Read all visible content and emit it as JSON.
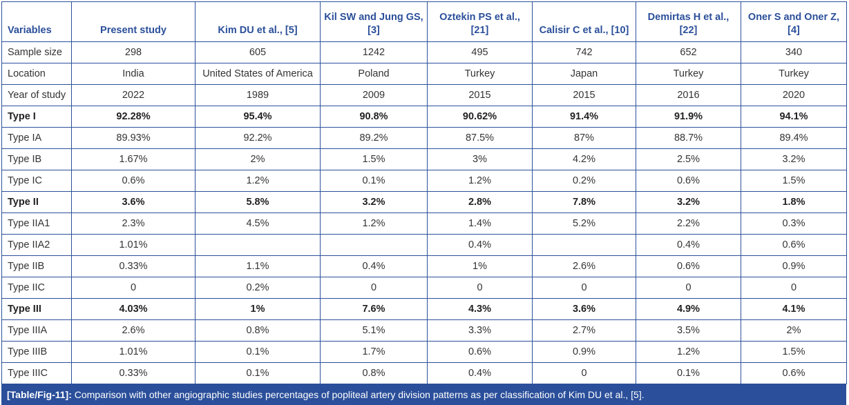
{
  "headers": [
    "Variables",
    "Present study",
    "Kim DU et al., [5]",
    "Kil SW and Jung GS, [3]",
    "Oztekin PS et al., [21]",
    "Calisir C et al., [10]",
    "Demirtas H et al., [22]",
    "Oner S and Oner Z, [4]"
  ],
  "rows": [
    {
      "bold": false,
      "cells": [
        "Sample size",
        "298",
        "605",
        "1242",
        "495",
        "742",
        "652",
        "340"
      ]
    },
    {
      "bold": false,
      "cells": [
        "Location",
        "India",
        "United States of America",
        "Poland",
        "Turkey",
        "Japan",
        "Turkey",
        "Turkey"
      ]
    },
    {
      "bold": false,
      "cells": [
        "Year of study",
        "2022",
        "1989",
        "2009",
        "2015",
        "2015",
        "2016",
        "2020"
      ]
    },
    {
      "bold": true,
      "cells": [
        "Type I",
        "92.28%",
        "95.4%",
        "90.8%",
        "90.62%",
        "91.4%",
        "91.9%",
        "94.1%"
      ]
    },
    {
      "bold": false,
      "cells": [
        "Type IA",
        "89.93%",
        "92.2%",
        "89.2%",
        "87.5%",
        "87%",
        "88.7%",
        "89.4%"
      ]
    },
    {
      "bold": false,
      "cells": [
        "Type IB",
        "1.67%",
        "2%",
        "1.5%",
        "3%",
        "4.2%",
        "2.5%",
        "3.2%"
      ]
    },
    {
      "bold": false,
      "cells": [
        "Type IC",
        "0.6%",
        "1.2%",
        "0.1%",
        "1.2%",
        "0.2%",
        "0.6%",
        "1.5%"
      ]
    },
    {
      "bold": true,
      "cells": [
        "Type II",
        "3.6%",
        "5.8%",
        "3.2%",
        "2.8%",
        "7.8%",
        "3.2%",
        "1.8%"
      ]
    },
    {
      "bold": false,
      "cells": [
        "Type IIA1",
        "2.3%",
        "4.5%",
        "1.2%",
        "1.4%",
        "5.2%",
        "2.2%",
        "0.3%"
      ]
    },
    {
      "bold": false,
      "cells": [
        "Type IIA2",
        "1.01%",
        "",
        "",
        "0.4%",
        "",
        "0.4%",
        "0.6%"
      ]
    },
    {
      "bold": false,
      "cells": [
        "Type IIB",
        "0.33%",
        "1.1%",
        "0.4%",
        "1%",
        "2.6%",
        "0.6%",
        "0.9%"
      ]
    },
    {
      "bold": false,
      "cells": [
        "Type IIC",
        "0",
        "0.2%",
        "0",
        "0",
        "0",
        "0",
        "0"
      ]
    },
    {
      "bold": true,
      "cells": [
        "Type III",
        "4.03%",
        "1%",
        "7.6%",
        "4.3%",
        "3.6%",
        "4.9%",
        "4.1%"
      ]
    },
    {
      "bold": false,
      "cells": [
        "Type IIIA",
        "2.6%",
        "0.8%",
        "5.1%",
        "3.3%",
        "2.7%",
        "3.5%",
        "2%"
      ]
    },
    {
      "bold": false,
      "cells": [
        "Type IIIB",
        "1.01%",
        "0.1%",
        "1.7%",
        "0.6%",
        "0.9%",
        "1.2%",
        "1.5%"
      ]
    },
    {
      "bold": false,
      "cells": [
        "Type IIIC",
        "0.33%",
        "0.1%",
        "0.8%",
        "0.4%",
        "0",
        "0.1%",
        "0.6%"
      ]
    }
  ],
  "caption": {
    "label": "[Table/Fig-11]:",
    "text": " Comparison with other angiographic studies percentages of popliteal artery division patterns as per classification of Kim DU et al., [5]."
  },
  "colors": {
    "accent": "#2b4f9a"
  }
}
